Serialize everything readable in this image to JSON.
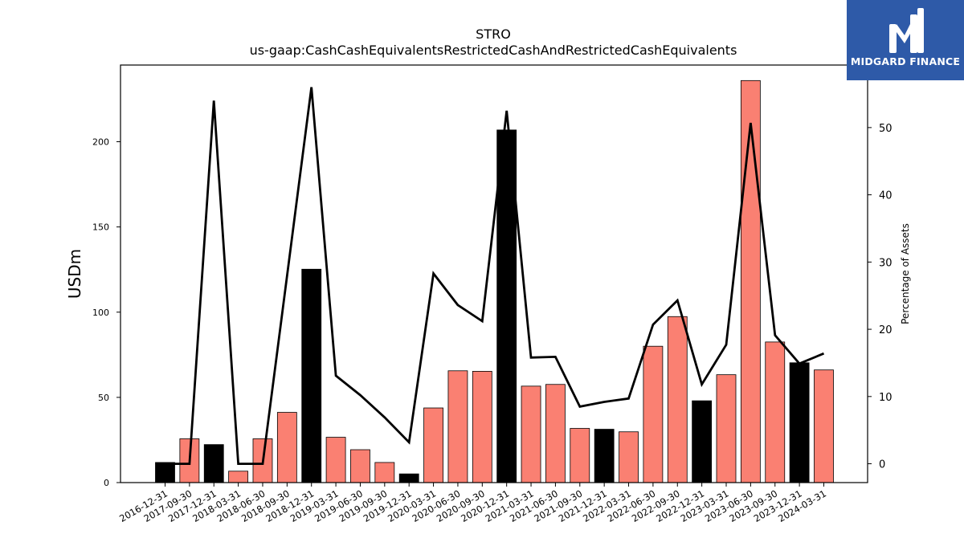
{
  "brand": {
    "name": "MIDGARD FINANCE",
    "background_color": "#2e5aa8",
    "mark_icon": "midgard-mark-icon"
  },
  "chart_data": {
    "type": "bar",
    "title": "STRO",
    "subtitle": "us-gaap:CashCashEquivalentsRestrictedCashAndRestrictedCashEquivalents",
    "ylabel": "USDm",
    "y2label": "Percentage of Assets",
    "ylim": [
      0,
      245
    ],
    "y2lim": [
      -2.8,
      59.3
    ],
    "yticks": [
      0,
      50,
      100,
      150,
      200
    ],
    "y2ticks": [
      0,
      10,
      20,
      30,
      40,
      50
    ],
    "grid": false,
    "colors": {
      "year_end": "#000000",
      "interim": "#fa8072",
      "line": "#000000"
    },
    "categories": [
      "2016-12-31",
      "2017-09-30",
      "2017-12-31",
      "2018-03-31",
      "2018-06-30",
      "2018-09-30",
      "2018-12-31",
      "2019-03-31",
      "2019-06-30",
      "2019-09-30",
      "2019-12-31",
      "2020-03-31",
      "2020-06-30",
      "2020-09-30",
      "2020-12-31",
      "2021-03-31",
      "2021-06-30",
      "2021-09-30",
      "2021-12-31",
      "2022-03-31",
      "2022-06-30",
      "2022-09-30",
      "2022-12-31",
      "2023-03-31",
      "2023-06-30",
      "2023-09-30",
      "2023-12-31",
      "2024-03-31"
    ],
    "values": [
      11.8,
      25.7,
      22.3,
      6.7,
      25.7,
      41.2,
      125.2,
      26.6,
      19.3,
      11.8,
      5.1,
      43.8,
      65.6,
      65.3,
      206.9,
      56.6,
      57.6,
      31.8,
      31.3,
      29.8,
      80.0,
      97.4,
      48.0,
      63.3,
      235.9,
      82.5,
      70.3,
      66.1
    ],
    "bar_colors": [
      "#000000",
      "#fa8072",
      "#000000",
      "#fa8072",
      "#fa8072",
      "#fa8072",
      "#000000",
      "#fa8072",
      "#fa8072",
      "#fa8072",
      "#000000",
      "#fa8072",
      "#fa8072",
      "#fa8072",
      "#000000",
      "#fa8072",
      "#fa8072",
      "#fa8072",
      "#000000",
      "#fa8072",
      "#fa8072",
      "#fa8072",
      "#000000",
      "#fa8072",
      "#fa8072",
      "#fa8072",
      "#000000",
      "#fa8072"
    ],
    "pct_of_assets": [
      0.0,
      0.0,
      54.0,
      0.0,
      0.0,
      28.0,
      56.0,
      13.1,
      10.2,
      6.9,
      3.2,
      28.3,
      23.6,
      21.2,
      52.5,
      15.8,
      15.9,
      8.5,
      9.2,
      9.7,
      20.7,
      24.3,
      11.8,
      17.7,
      50.7,
      19.1,
      14.9,
      16.4
    ]
  }
}
